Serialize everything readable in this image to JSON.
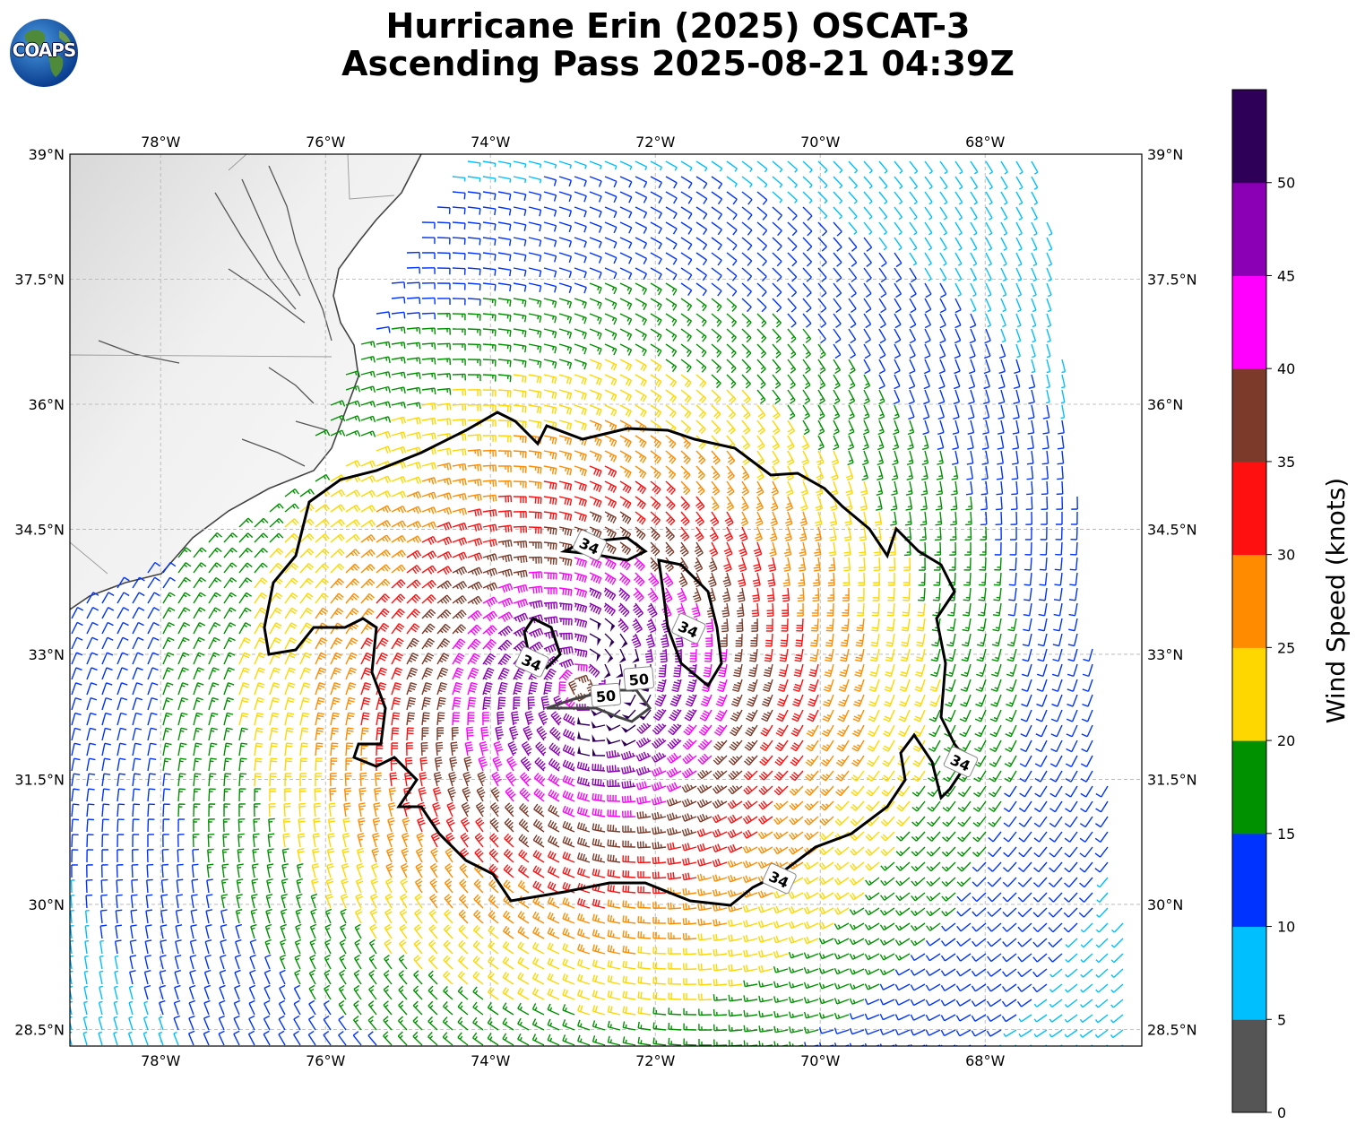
{
  "title": {
    "line1": "Hurricane Erin (2025) OSCAT-3",
    "line2": "Ascending Pass 2025-08-21 04:39Z"
  },
  "logo": {
    "text": "COAPS",
    "icon": "globe-icon"
  },
  "map": {
    "lon_ticks": [
      "78°W",
      "76°W",
      "74°W",
      "72°W",
      "70°W",
      "68°W"
    ],
    "lat_ticks": [
      "39°N",
      "37.5°N",
      "36°N",
      "34.5°N",
      "33°N",
      "31.5°N",
      "30°N",
      "28.5°N"
    ],
    "lon_range": [
      -79.1,
      -66.1
    ],
    "lat_range": [
      28.3,
      39.0
    ],
    "gridlines": true,
    "storm_center": {
      "lon": -72.9,
      "lat": 32.6
    },
    "contour_labels": [
      {
        "text": "34",
        "lon": -72.8,
        "lat": 34.3
      },
      {
        "text": "34",
        "lon": -71.6,
        "lat": 33.3
      },
      {
        "text": "34",
        "lon": -73.5,
        "lat": 32.9
      },
      {
        "text": "50",
        "lon": -72.2,
        "lat": 32.7
      },
      {
        "text": "50",
        "lon": -72.6,
        "lat": 32.5
      },
      {
        "text": "34",
        "lon": -68.3,
        "lat": 31.7
      },
      {
        "text": "34",
        "lon": -70.5,
        "lat": 30.3
      }
    ]
  },
  "colorbar": {
    "label": "Wind Speed (knots)",
    "ticks": [
      "0",
      "5",
      "10",
      "15",
      "20",
      "25",
      "30",
      "35",
      "40",
      "45",
      "50"
    ],
    "colors": [
      "#555555",
      "#00bfff",
      "#0033ff",
      "#009100",
      "#ffd700",
      "#ff8c00",
      "#ff1010",
      "#7b3a2a",
      "#ff00ff",
      "#8b00b5",
      "#2e0057"
    ]
  }
}
